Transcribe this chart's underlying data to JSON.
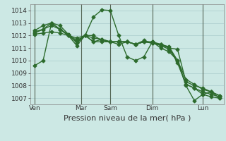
{
  "background_color": "#cce8e4",
  "grid_color": "#aacccc",
  "line_color": "#2d6b2d",
  "marker": "D",
  "marker_size": 2.5,
  "linewidth": 1.0,
  "ylim": [
    1006.5,
    1014.5
  ],
  "yticks": [
    1007,
    1008,
    1009,
    1010,
    1011,
    1012,
    1013,
    1014
  ],
  "xlabel": "Pression niveau de la mer( hPa )",
  "xlabel_fontsize": 8,
  "tick_fontsize": 6.5,
  "day_labels": [
    "Ven",
    "Mar",
    "Sam",
    "Dim",
    "Lun"
  ],
  "series": [
    [
      1009.6,
      1010.0,
      1013.0,
      1012.5,
      1012.0,
      1011.5,
      1012.0,
      1013.5,
      1014.05,
      1014.0,
      1012.0,
      1010.3,
      1010.0,
      1010.3,
      1011.5,
      1011.0,
      1010.7,
      1010.0,
      1008.0,
      1006.8,
      1007.3,
      1007.5,
      1007.0
    ],
    [
      1012.4,
      1012.8,
      1013.0,
      1012.5,
      1012.0,
      1011.8,
      1012.0,
      1012.0,
      1011.6,
      1011.5,
      1011.5,
      1011.5,
      1011.3,
      1011.5,
      1011.5,
      1011.3,
      1011.0,
      1010.9,
      1008.3,
      1008.0,
      1007.8,
      1007.5,
      1007.2
    ],
    [
      1012.2,
      1012.5,
      1013.0,
      1012.8,
      1012.1,
      1011.6,
      1012.0,
      1011.8,
      1011.7,
      1011.5,
      1011.5,
      1011.5,
      1011.3,
      1011.5,
      1011.4,
      1011.3,
      1011.1,
      1010.0,
      1008.5,
      1008.1,
      1007.7,
      1007.5,
      1007.2
    ],
    [
      1012.3,
      1012.5,
      1012.8,
      1012.5,
      1012.1,
      1011.4,
      1012.0,
      1011.5,
      1011.7,
      1011.5,
      1011.5,
      1011.5,
      1011.3,
      1011.5,
      1011.4,
      1011.3,
      1011.0,
      1009.8,
      1008.1,
      1007.8,
      1007.5,
      1007.3,
      1007.1
    ],
    [
      1012.1,
      1012.2,
      1012.3,
      1012.2,
      1012.0,
      1011.2,
      1012.0,
      1011.5,
      1011.5,
      1011.5,
      1011.3,
      1011.5,
      1011.3,
      1011.6,
      1011.4,
      1011.2,
      1010.9,
      1010.0,
      1008.1,
      1007.8,
      1007.3,
      1007.1,
      1007.0
    ]
  ]
}
